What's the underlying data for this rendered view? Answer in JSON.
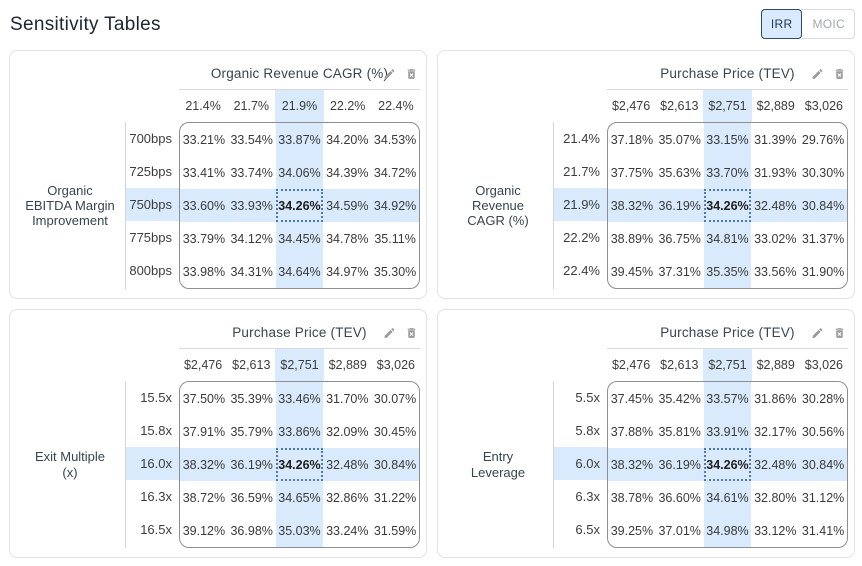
{
  "page_title": "Sensitivity Tables",
  "toggle": {
    "options": [
      {
        "label": "IRR",
        "selected": true
      },
      {
        "label": "MOIC",
        "selected": false
      }
    ]
  },
  "colors": {
    "highlight": "#d8eafb",
    "selected_cell_border": "#4a79b5",
    "toggle_selected_border": "#2c4a70"
  },
  "tables": [
    {
      "col_title": "Organic Revenue CAGR (%)",
      "row_title": "Organic EBITDA Margin Improvement",
      "row_title_lines": [
        "Organic",
        "EBITDA Margin",
        "Improvement"
      ],
      "columns": [
        "21.4%",
        "21.7%",
        "21.9%",
        "22.2%",
        "22.4%"
      ],
      "rows": [
        "700bps",
        "725bps",
        "750bps",
        "775bps",
        "800bps"
      ],
      "selected_col": 2,
      "selected_row": 2,
      "values": [
        [
          "33.21%",
          "33.54%",
          "33.87%",
          "34.20%",
          "34.53%"
        ],
        [
          "33.41%",
          "33.74%",
          "34.06%",
          "34.39%",
          "34.72%"
        ],
        [
          "33.60%",
          "33.93%",
          "34.26%",
          "34.59%",
          "34.92%"
        ],
        [
          "33.79%",
          "34.12%",
          "34.45%",
          "34.78%",
          "35.11%"
        ],
        [
          "33.98%",
          "34.31%",
          "34.64%",
          "34.97%",
          "35.30%"
        ]
      ]
    },
    {
      "col_title": "Purchase Price (TEV)",
      "row_title": "Organic Revenue CAGR (%)",
      "row_title_lines": [
        "Organic",
        "Revenue",
        "CAGR (%)"
      ],
      "columns": [
        "$2,476",
        "$2,613",
        "$2,751",
        "$2,889",
        "$3,026"
      ],
      "rows": [
        "21.4%",
        "21.7%",
        "21.9%",
        "22.2%",
        "22.4%"
      ],
      "selected_col": 2,
      "selected_row": 2,
      "values": [
        [
          "37.18%",
          "35.07%",
          "33.15%",
          "31.39%",
          "29.76%"
        ],
        [
          "37.75%",
          "35.63%",
          "33.70%",
          "31.93%",
          "30.30%"
        ],
        [
          "38.32%",
          "36.19%",
          "34.26%",
          "32.48%",
          "30.84%"
        ],
        [
          "38.89%",
          "36.75%",
          "34.81%",
          "33.02%",
          "31.37%"
        ],
        [
          "39.45%",
          "37.31%",
          "35.35%",
          "33.56%",
          "31.90%"
        ]
      ]
    },
    {
      "col_title": "Purchase Price (TEV)",
      "row_title": "Exit Multiple (x)",
      "row_title_lines": [
        "Exit Multiple",
        "(x)"
      ],
      "columns": [
        "$2,476",
        "$2,613",
        "$2,751",
        "$2,889",
        "$3,026"
      ],
      "rows": [
        "15.5x",
        "15.8x",
        "16.0x",
        "16.3x",
        "16.5x"
      ],
      "selected_col": 2,
      "selected_row": 2,
      "values": [
        [
          "37.50%",
          "35.39%",
          "33.46%",
          "31.70%",
          "30.07%"
        ],
        [
          "37.91%",
          "35.79%",
          "33.86%",
          "32.09%",
          "30.45%"
        ],
        [
          "38.32%",
          "36.19%",
          "34.26%",
          "32.48%",
          "30.84%"
        ],
        [
          "38.72%",
          "36.59%",
          "34.65%",
          "32.86%",
          "31.22%"
        ],
        [
          "39.12%",
          "36.98%",
          "35.03%",
          "33.24%",
          "31.59%"
        ]
      ]
    },
    {
      "col_title": "Purchase Price (TEV)",
      "row_title": "Entry Leverage",
      "row_title_lines": [
        "Entry",
        "Leverage"
      ],
      "columns": [
        "$2,476",
        "$2,613",
        "$2,751",
        "$2,889",
        "$3,026"
      ],
      "rows": [
        "5.5x",
        "5.8x",
        "6.0x",
        "6.3x",
        "6.5x"
      ],
      "selected_col": 2,
      "selected_row": 2,
      "values": [
        [
          "37.45%",
          "35.42%",
          "33.57%",
          "31.86%",
          "30.28%"
        ],
        [
          "37.88%",
          "35.81%",
          "33.91%",
          "32.17%",
          "30.56%"
        ],
        [
          "38.32%",
          "36.19%",
          "34.26%",
          "32.48%",
          "30.84%"
        ],
        [
          "38.78%",
          "36.60%",
          "34.61%",
          "32.80%",
          "31.12%"
        ],
        [
          "39.25%",
          "37.01%",
          "34.98%",
          "33.12%",
          "31.41%"
        ]
      ]
    }
  ]
}
